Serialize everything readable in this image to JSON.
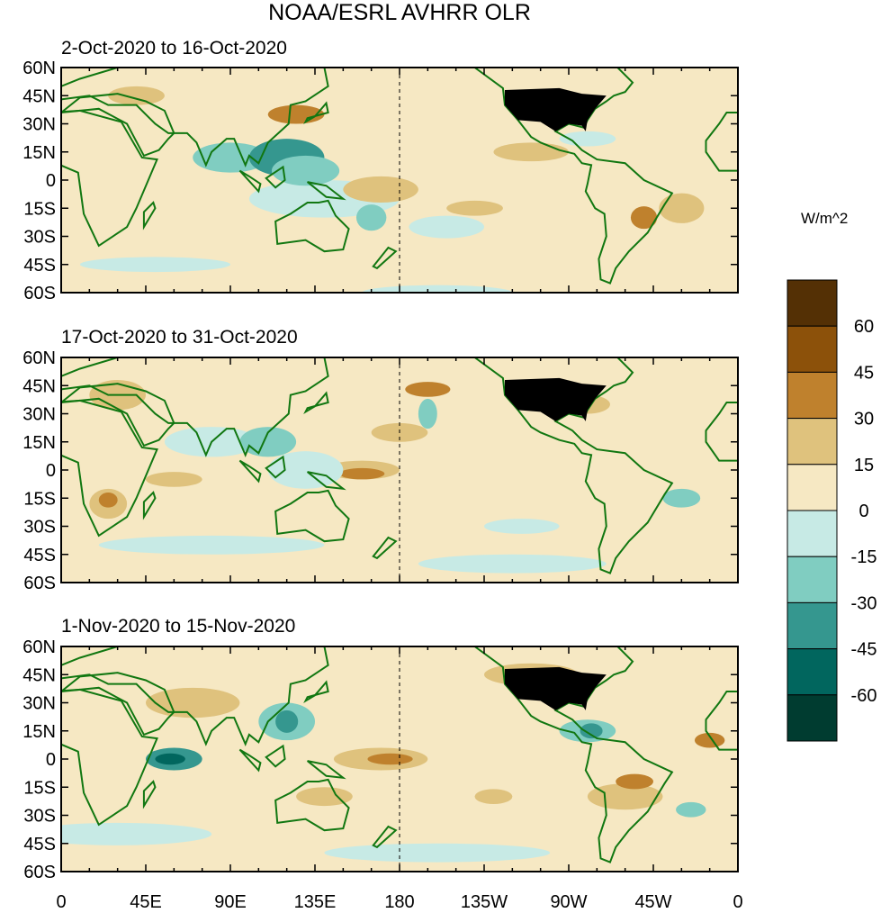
{
  "title": "NOAA/ESRL AVHRR OLR",
  "panels": [
    {
      "label": "2-Oct-2020 to 16-Oct-2020"
    },
    {
      "label": "17-Oct-2020 to 31-Oct-2020"
    },
    {
      "label": "1-Nov-2020 to 15-Nov-2020"
    }
  ],
  "lat_ticks": [
    "60N",
    "45N",
    "30N",
    "15N",
    "0",
    "15S",
    "30S",
    "45S",
    "60S"
  ],
  "lon_ticks": [
    "0",
    "45E",
    "90E",
    "135E",
    "180",
    "135W",
    "90W",
    "45W",
    "0"
  ],
  "colorbar": {
    "units": "W/m^2",
    "labels": [
      "60",
      "45",
      "30",
      "15",
      "0",
      "-15",
      "-30",
      "-45",
      "-60"
    ],
    "colors": [
      "#543005",
      "#8c510a",
      "#bf812d",
      "#dfc27d",
      "#f6e8c3",
      "#c7eae5",
      "#80cdc1",
      "#35978f",
      "#01665e",
      "#003c30"
    ]
  },
  "colors": {
    "coastline": "#117711",
    "land_mask_usa": "#000000"
  }
}
